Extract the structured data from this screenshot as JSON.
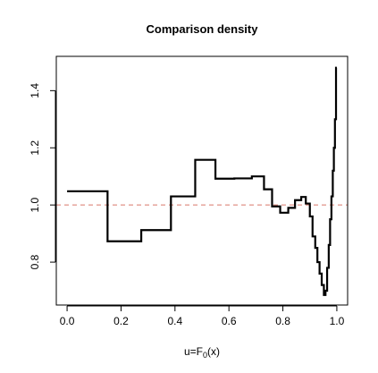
{
  "chart_data": {
    "type": "line",
    "title": "Comparison density",
    "xlabel": {
      "main": "u=F",
      "sub": "0",
      "tail": "(x)"
    },
    "ylabel": "",
    "xlim": [
      -0.04,
      1.04
    ],
    "ylim": [
      0.65,
      1.52
    ],
    "x_ticks": [
      0.0,
      0.2,
      0.4,
      0.6,
      0.8,
      1.0
    ],
    "x_tick_labels": [
      "0.0",
      "0.2",
      "0.4",
      "0.6",
      "0.8",
      "1.0"
    ],
    "y_ticks": [
      0.8,
      1.0,
      1.2,
      1.4
    ],
    "y_tick_labels": [
      "0.8",
      "1.0",
      "1.2",
      "1.4"
    ],
    "reference_line": {
      "y": 1.0,
      "color": "#d9786a",
      "style": "dashed"
    },
    "series": [
      {
        "style": "step",
        "color": "#000000",
        "x": [
          0.0,
          0.15,
          0.15,
          0.275,
          0.275,
          0.385,
          0.385,
          0.475,
          0.475,
          0.55,
          0.55,
          0.62,
          0.62,
          0.685,
          0.685,
          0.73,
          0.73,
          0.76,
          0.76,
          0.79,
          0.79,
          0.82,
          0.82,
          0.845,
          0.845,
          0.868,
          0.868,
          0.885,
          0.885,
          0.9,
          0.9,
          0.91,
          0.91,
          0.92,
          0.92,
          0.928,
          0.928,
          0.936,
          0.936,
          0.944,
          0.944,
          0.952,
          0.952,
          0.958,
          0.958,
          0.964,
          0.964,
          0.97,
          0.97,
          0.975,
          0.975,
          0.98,
          0.98,
          0.985,
          0.985,
          0.989,
          0.989,
          0.993,
          0.993,
          0.997,
          0.997,
          1.0
        ],
        "y": [
          1.048,
          1.048,
          0.873,
          0.873,
          0.912,
          0.912,
          1.03,
          1.03,
          1.158,
          1.158,
          1.092,
          1.092,
          1.093,
          1.093,
          1.1,
          1.1,
          1.055,
          1.055,
          0.995,
          0.995,
          0.973,
          0.973,
          0.99,
          0.99,
          1.017,
          1.017,
          1.028,
          1.028,
          1.005,
          1.005,
          0.96,
          0.96,
          0.89,
          0.89,
          0.85,
          0.85,
          0.8,
          0.8,
          0.76,
          0.76,
          0.72,
          0.72,
          0.685,
          0.685,
          0.7,
          0.7,
          0.78,
          0.78,
          0.86,
          0.86,
          0.95,
          0.95,
          1.03,
          1.03,
          1.12,
          1.12,
          1.2,
          1.2,
          1.3,
          1.3,
          1.48,
          1.48
        ]
      }
    ]
  }
}
